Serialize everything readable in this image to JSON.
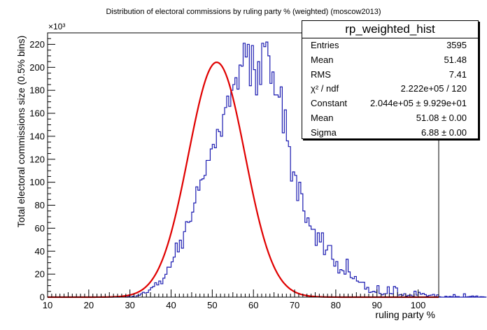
{
  "chart_data": {
    "type": "histogram",
    "title": "Distribution of electoral commissions by ruling party % (weighted) (moscow2013)",
    "xlabel": "ruling party %",
    "ylabel": "Total electoral commissions size (0.5% bins)",
    "y_exponent_label": "×10³",
    "xlim": [
      10,
      105
    ],
    "ylim": [
      0,
      230
    ],
    "x_ticks": [
      10,
      20,
      30,
      40,
      50,
      60,
      70,
      80,
      90,
      100
    ],
    "y_ticks": [
      0,
      20,
      40,
      60,
      80,
      100,
      120,
      140,
      160,
      180,
      200,
      220
    ],
    "bin_width": 0.5,
    "bins_start": 26.0,
    "bin_values": [
      0.3,
      0,
      0,
      0.4,
      0.6,
      0.6,
      0,
      0.8,
      0,
      0.7,
      0,
      1.2,
      1.6,
      2.8,
      4.2,
      3.6,
      4.0,
      6.2,
      8.2,
      9.3,
      12.5,
      10.6,
      14.0,
      11.6,
      16.5,
      19.9,
      26.1,
      26.0,
      30.7,
      34.8,
      47.1,
      39.4,
      49.6,
      42.6,
      57.0,
      65.7,
      65.0,
      66.0,
      74.0,
      82.0,
      96.0,
      93.0,
      102.0,
      103.0,
      106.0,
      119.0,
      119.0,
      129.0,
      133.0,
      130.0,
      146.0,
      144.0,
      140.0,
      159.0,
      165.0,
      175.0,
      166.0,
      180.0,
      185.0,
      191.0,
      181.0,
      202.0,
      201.0,
      221.0,
      209.0,
      220.0,
      184.0,
      219.0,
      198.0,
      176.0,
      205.0,
      185.0,
      221.0,
      218.0,
      222.0,
      210.0,
      186.0,
      196.0,
      176.0,
      176.0,
      174.0,
      183.0,
      143.0,
      163.0,
      136.0,
      131.0,
      101.0,
      109.0,
      106.0,
      84.0,
      100.0,
      90.0,
      75.0,
      65.0,
      69.0,
      62.0,
      59.0,
      59.0,
      45.0,
      56.0,
      48.0,
      56.0,
      37.0,
      41.0,
      45.0,
      45.0,
      33.0,
      27.0,
      31.0,
      21.0,
      24.0,
      23.0,
      20.0,
      33.0,
      22.0,
      17.0,
      16.0,
      18.0,
      14.0,
      13.0,
      13.0,
      13.0,
      7.0,
      8.5,
      4.0,
      4.5,
      5.1,
      4.2,
      10.0,
      3.2,
      2.0,
      2.8,
      3.0,
      9.0,
      3.2,
      2.9,
      9.3,
      8.0,
      1.8,
      2.2,
      1.6,
      3.0,
      1.0,
      1.6,
      1.8,
      0.7,
      5.2,
      1.8,
      4.2,
      2.6,
      3.2,
      2.2,
      0.9,
      1.5,
      1.8,
      2.4,
      0.5,
      2.0,
      0.3,
      0,
      0,
      0.8,
      0.2,
      0.6,
      0.3,
      2.2,
      0.5,
      0.5,
      0,
      0,
      2.9,
      0.2,
      0.4,
      0.6,
      1.0,
      0.4,
      1.0,
      0,
      0.4,
      0.3,
      0.1
    ],
    "fit": {
      "type": "gaussian",
      "constant": 204400,
      "mean": 51.08,
      "sigma": 6.88,
      "range": [
        10,
        105
      ]
    },
    "colors": {
      "histogram": "#1a1ab0",
      "fit": "#e00000",
      "axis": "#000000"
    }
  },
  "stats_box": {
    "title": "rp_weighted_hist",
    "rows": [
      {
        "label": "Entries",
        "value": "3595"
      },
      {
        "label": "Mean",
        "value": "51.48"
      },
      {
        "label": "RMS",
        "value": "7.41"
      },
      {
        "label": "χ² / ndf",
        "value": "2.222e+05 / 120"
      },
      {
        "label": "Constant",
        "value": "2.044e+05  ± 9.929e+01"
      },
      {
        "label": "Mean",
        "value": "51.08 ± 0.00"
      },
      {
        "label": "Sigma",
        "value": "6.88 ± 0.00"
      }
    ]
  }
}
